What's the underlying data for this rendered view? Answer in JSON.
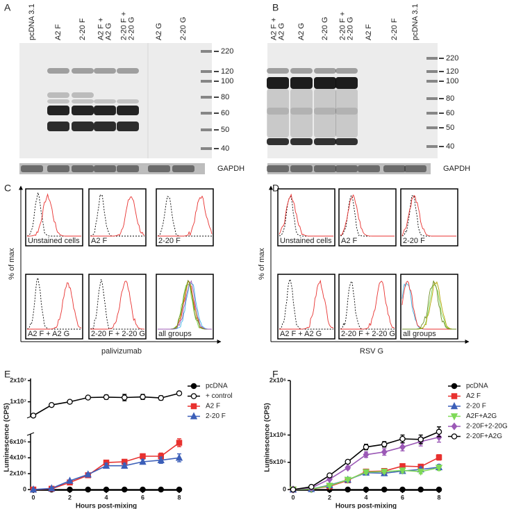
{
  "blots": [
    {
      "panel": "A",
      "lanes": [
        [
          "pcDNA 3.1"
        ],
        [
          "A2 F"
        ],
        [
          "2-20 F"
        ],
        [
          "A2 F +",
          "A2 G"
        ],
        [
          "2-20 F +",
          "2-20 G"
        ],
        [
          "A2 G"
        ],
        [
          "2-20 G"
        ]
      ],
      "markers": [
        220,
        120,
        100,
        80,
        60,
        50,
        40
      ],
      "loading_control": "GAPDH"
    },
    {
      "panel": "B",
      "lanes": [
        [
          "A2 F +",
          "A2 G"
        ],
        [
          "A2 G"
        ],
        [
          "2-20 G"
        ],
        [
          "2-20 F +",
          "2-20 G"
        ],
        [
          "A2 F"
        ],
        [
          "2-20 F"
        ],
        [
          "pcDNA 3.1"
        ]
      ],
      "markers": [
        220,
        120,
        100,
        80,
        60,
        50,
        40
      ],
      "loading_control": "GAPDH"
    }
  ],
  "flow": [
    {
      "panel": "C",
      "ylabel": "% of max",
      "xlabel": "palivizumab",
      "plots": [
        "Unstained cells",
        "A2 F",
        "2-20 F",
        "A2 F + A2 G",
        "2-20 F + 2-20 G",
        "all groups"
      ]
    },
    {
      "panel": "D",
      "ylabel": "% of max",
      "xlabel": "RSV G",
      "plots": [
        "Unstained cells",
        "A2 F",
        "2-20 F",
        "A2 F + A2 G",
        "2-20 F + 2-20 G",
        "all groups"
      ]
    }
  ],
  "chart_data": [
    {
      "type": "line",
      "panel": "E",
      "ylabel": "Luminescence (CPS)",
      "xlabel": "Hours post-mixing",
      "x": [
        0,
        1,
        2,
        3,
        4,
        5,
        6,
        7,
        8
      ],
      "xlim": [
        0,
        8
      ],
      "xticks": [
        0,
        2,
        4,
        6,
        8
      ],
      "ylim": [
        0,
        700000
      ],
      "yticks": [
        0,
        {
          "value": 200000,
          "label": "2x10⁵"
        },
        {
          "value": 400000,
          "label": "4x10⁵"
        },
        {
          "value": 600000,
          "label": "6x10⁵"
        }
      ],
      "upper_ylim": [
        3000000,
        21000000
      ],
      "upper_yticks": [
        {
          "value": 10000000,
          "label": "1x10⁷"
        },
        {
          "value": 20000000,
          "label": "2x10⁷"
        }
      ],
      "series": [
        {
          "name": "pcDNA",
          "color": "#000000",
          "marker": "circle",
          "axis": "lower",
          "values": [
            0,
            0,
            0,
            0,
            0,
            0,
            0,
            0,
            0
          ]
        },
        {
          "name": "+ control",
          "color": "#000000",
          "marker": "circle-open",
          "axis": "upper",
          "values": [
            3500000,
            8500000,
            10000000,
            12000000,
            12200000,
            12000000,
            12300000,
            11800000,
            14000000
          ],
          "errors": [
            200000,
            300000,
            600000,
            300000,
            1000000,
            1500000,
            1200000,
            1000000,
            800000
          ]
        },
        {
          "name": "A2 F",
          "color": "#e8312f",
          "marker": "square",
          "axis": "lower",
          "values": [
            0,
            10000,
            90000,
            180000,
            340000,
            350000,
            420000,
            420000,
            590000
          ],
          "errors": [
            0,
            5000,
            10000,
            15000,
            30000,
            30000,
            30000,
            40000,
            50000
          ]
        },
        {
          "name": "2-20 F",
          "color": "#3c5fb8",
          "marker": "triangle",
          "axis": "lower",
          "values": [
            0,
            15000,
            110000,
            190000,
            300000,
            300000,
            350000,
            370000,
            400000
          ],
          "errors": [
            0,
            5000,
            10000,
            15000,
            30000,
            30000,
            30000,
            40000,
            50000
          ]
        }
      ]
    },
    {
      "type": "line",
      "panel": "F",
      "ylabel": "Luminescence (CPS)",
      "xlabel": "Hours post-mixing",
      "x": [
        0,
        1,
        2,
        3,
        4,
        5,
        6,
        7,
        8
      ],
      "xlim": [
        0,
        8
      ],
      "xticks": [
        0,
        2,
        4,
        6,
        8
      ],
      "ylim": [
        0,
        2000000
      ],
      "yticks": [
        0,
        {
          "value": 500000,
          "label": "5x10⁵"
        },
        {
          "value": 1000000,
          "label": "1x10⁶"
        },
        {
          "value": 2000000,
          "label": "2x10⁶"
        }
      ],
      "series": [
        {
          "name": "pcDNA",
          "color": "#000000",
          "marker": "circle",
          "values": [
            0,
            0,
            0,
            0,
            0,
            0,
            0,
            0,
            0
          ]
        },
        {
          "name": "A2 F",
          "color": "#e8312f",
          "marker": "square",
          "values": [
            0,
            10000,
            60000,
            170000,
            330000,
            340000,
            430000,
            420000,
            590000
          ],
          "errors": [
            0,
            5000,
            10000,
            20000,
            30000,
            30000,
            40000,
            40000,
            50000
          ]
        },
        {
          "name": "2-20 F",
          "color": "#3c5fb8",
          "marker": "triangle",
          "values": [
            0,
            10000,
            80000,
            180000,
            310000,
            300000,
            340000,
            370000,
            410000
          ],
          "errors": [
            0,
            5000,
            10000,
            20000,
            30000,
            30000,
            40000,
            40000,
            50000
          ]
        },
        {
          "name": "A2F+A2G",
          "color": "#7ed957",
          "marker": "triangle-down",
          "values": [
            0,
            10000,
            70000,
            180000,
            320000,
            330000,
            350000,
            330000,
            400000
          ],
          "errors": [
            0,
            5000,
            10000,
            20000,
            30000,
            30000,
            40000,
            40000,
            50000
          ]
        },
        {
          "name": "2-20F+2-20G",
          "color": "#9b59b6",
          "marker": "diamond",
          "values": [
            0,
            30000,
            190000,
            400000,
            640000,
            690000,
            780000,
            880000,
            960000
          ],
          "errors": [
            0,
            10000,
            20000,
            30000,
            50000,
            60000,
            70000,
            80000,
            90000
          ]
        },
        {
          "name": "2-20F+A2G",
          "color": "#000000",
          "marker": "circle-open",
          "values": [
            0,
            50000,
            260000,
            510000,
            780000,
            830000,
            930000,
            920000,
            1060000
          ],
          "errors": [
            0,
            10000,
            20000,
            30000,
            50000,
            50000,
            70000,
            80000,
            90000
          ]
        }
      ]
    }
  ]
}
